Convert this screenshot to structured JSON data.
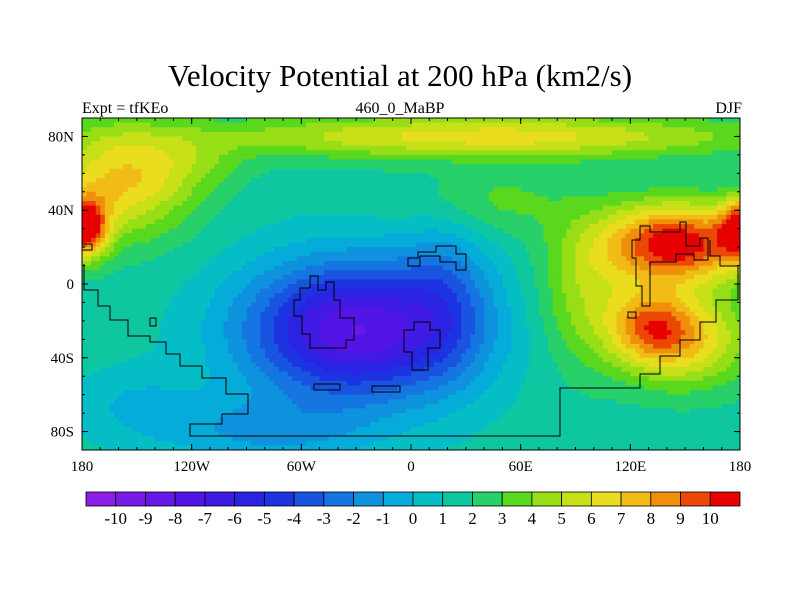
{
  "chart_data": {
    "type": "heatmap",
    "title": "Velocity Potential at 200 hPa (km2/s)",
    "subtitle_left": "Expt = tfKEo",
    "subtitle_center": "460_0_MaBP",
    "subtitle_right": "DJF",
    "x_ticks": [
      "180",
      "120W",
      "60W",
      "0",
      "60E",
      "120E",
      "180"
    ],
    "x_tick_values": [
      -180,
      -120,
      -60,
      0,
      60,
      120,
      180
    ],
    "y_ticks": [
      "80N",
      "40N",
      "0",
      "40S",
      "80S"
    ],
    "y_tick_values": [
      80,
      40,
      0,
      -40,
      -80
    ],
    "xlim": [
      -180,
      180
    ],
    "ylim": [
      -90,
      90
    ],
    "colorbar_labels": [
      "-10",
      "-9",
      "-8",
      "-7",
      "-6",
      "-5",
      "-4",
      "-3",
      "-2",
      "-1",
      "0",
      "1",
      "2",
      "3",
      "4",
      "5",
      "6",
      "7",
      "8",
      "9",
      "10"
    ],
    "colorbar_values": [
      -10,
      -9,
      -8,
      -7,
      -6,
      -5,
      -4,
      -3,
      -2,
      -1,
      0,
      1,
      2,
      3,
      4,
      5,
      6,
      7,
      8,
      9,
      10
    ],
    "field_features": [
      {
        "name": "minimum",
        "lon": -30,
        "lat": -25,
        "value": -9.5
      },
      {
        "name": "maximum",
        "lon": 145,
        "lat": 22,
        "value": 9.5
      },
      {
        "name": "secondary-maximum",
        "lon": -178,
        "lat": 30,
        "value": 8.5
      }
    ]
  }
}
